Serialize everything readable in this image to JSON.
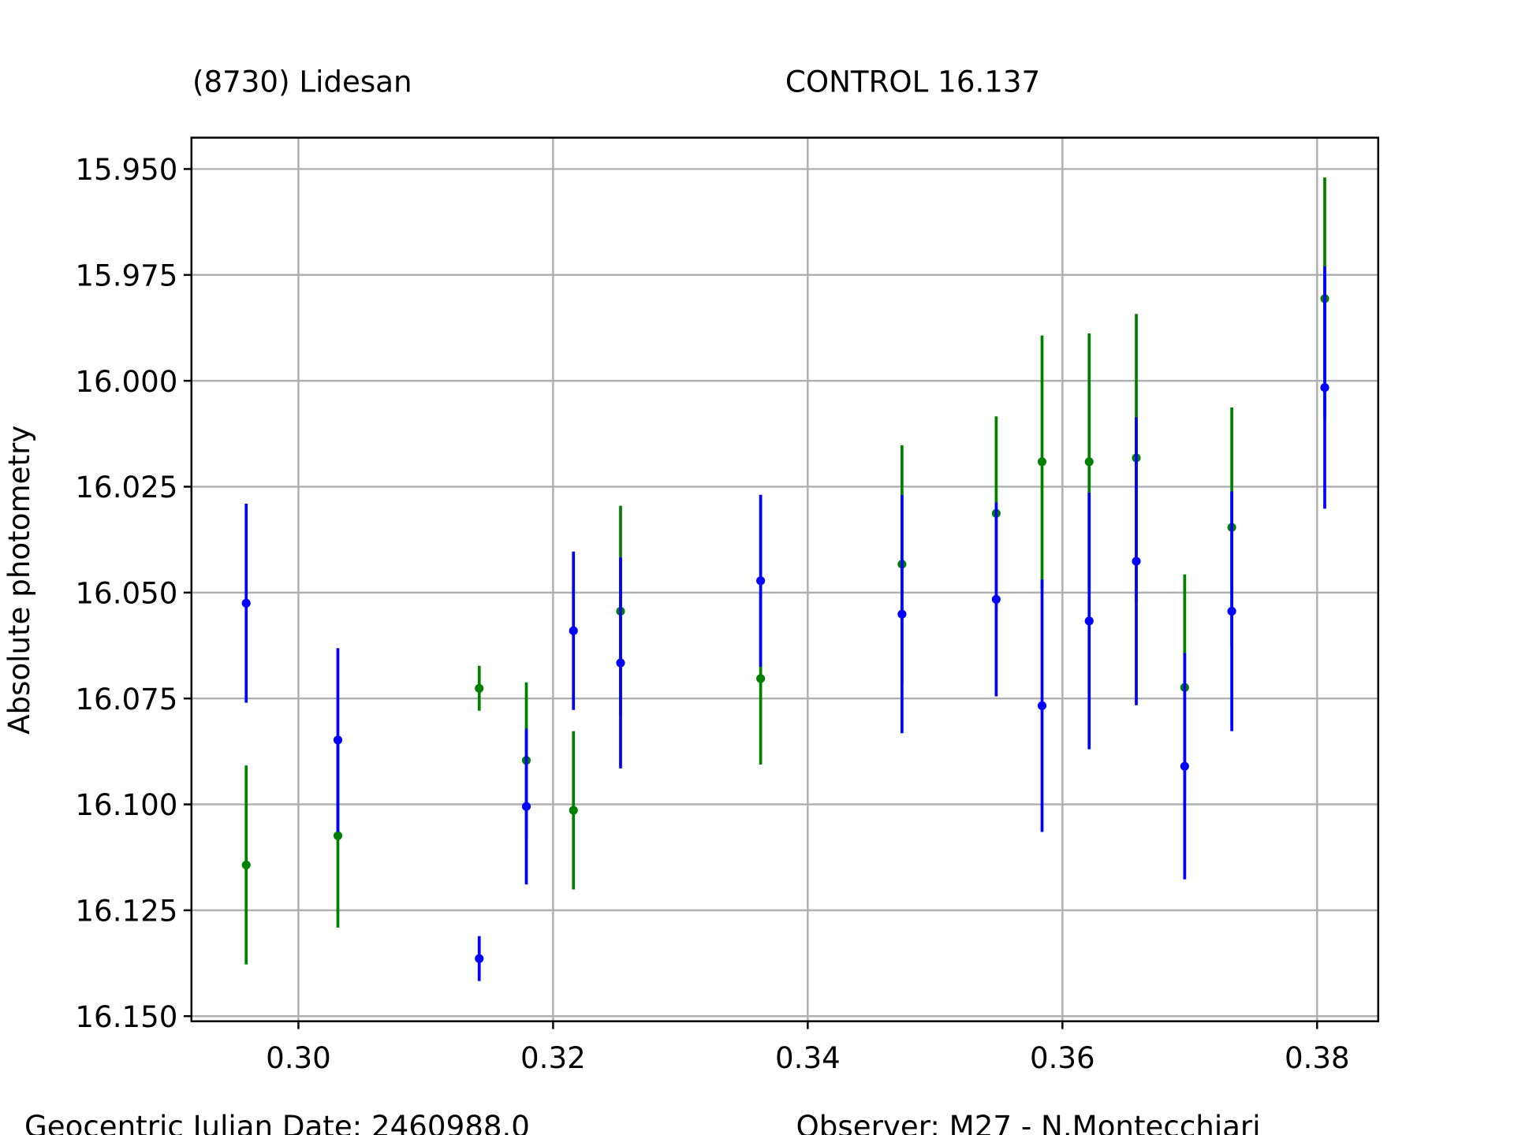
{
  "chart_data": {
    "type": "errorbar",
    "y_label": "Absolute photometry",
    "annotations": [
      "Geocentric Julian Date: 2460988.0",
      "Observer: M27 - N.Montecchiari"
    ],
    "x": [
      0.2959,
      0.3031,
      0.3142,
      0.3179,
      0.3216,
      0.3253,
      0.3363,
      0.3474,
      0.3548,
      0.3584,
      0.3621,
      0.3658,
      0.3696,
      0.3733,
      0.3806
    ],
    "series": [
      {
        "name": "(8730) Lidesan",
        "color": "#008000",
        "values": [
          16.1143,
          16.1074,
          16.0726,
          16.0896,
          16.1014,
          16.0544,
          16.0703,
          16.0433,
          16.0313,
          16.0191,
          16.0191,
          16.0182,
          16.0724,
          16.0346,
          15.9806
        ],
        "errors": [
          0.0235,
          0.0217,
          0.0053,
          0.0184,
          0.0187,
          0.0249,
          0.0203,
          0.0281,
          0.0229,
          0.0298,
          0.0303,
          0.034,
          0.0267,
          0.0283,
          0.0286
        ]
      },
      {
        "name": "CONTROL 16.137",
        "color": "#0000ff",
        "values": [
          16.0525,
          16.0848,
          16.1364,
          16.1005,
          16.059,
          16.0666,
          16.0472,
          16.0551,
          16.0516,
          16.0767,
          16.0567,
          16.0426,
          16.091,
          16.0544,
          16.0016
        ],
        "errors": [
          0.0235,
          0.0217,
          0.0053,
          0.0184,
          0.0187,
          0.0249,
          0.0203,
          0.0281,
          0.0229,
          0.0298,
          0.0303,
          0.034,
          0.0267,
          0.0283,
          0.0286
        ]
      }
    ],
    "xlim": [
      0.2916,
      0.3848
    ],
    "ylim": [
      16.1512,
      15.9426
    ],
    "xticks": [
      {
        "value": 0.3,
        "label": "0.30"
      },
      0.32,
      0.34,
      0.36,
      0.38
    ],
    "yticks": [
      {
        "value": 15.95,
        "label": "15.950"
      },
      15.975,
      {
        "value": 16.0,
        "label": "16.000"
      },
      16.025,
      {
        "value": 16.05,
        "label": "16.050"
      },
      16.075,
      {
        "value": 16.1,
        "label": "16.100"
      },
      16.125,
      {
        "value": 16.15,
        "label": "16.150"
      }
    ],
    "grid": true
  }
}
